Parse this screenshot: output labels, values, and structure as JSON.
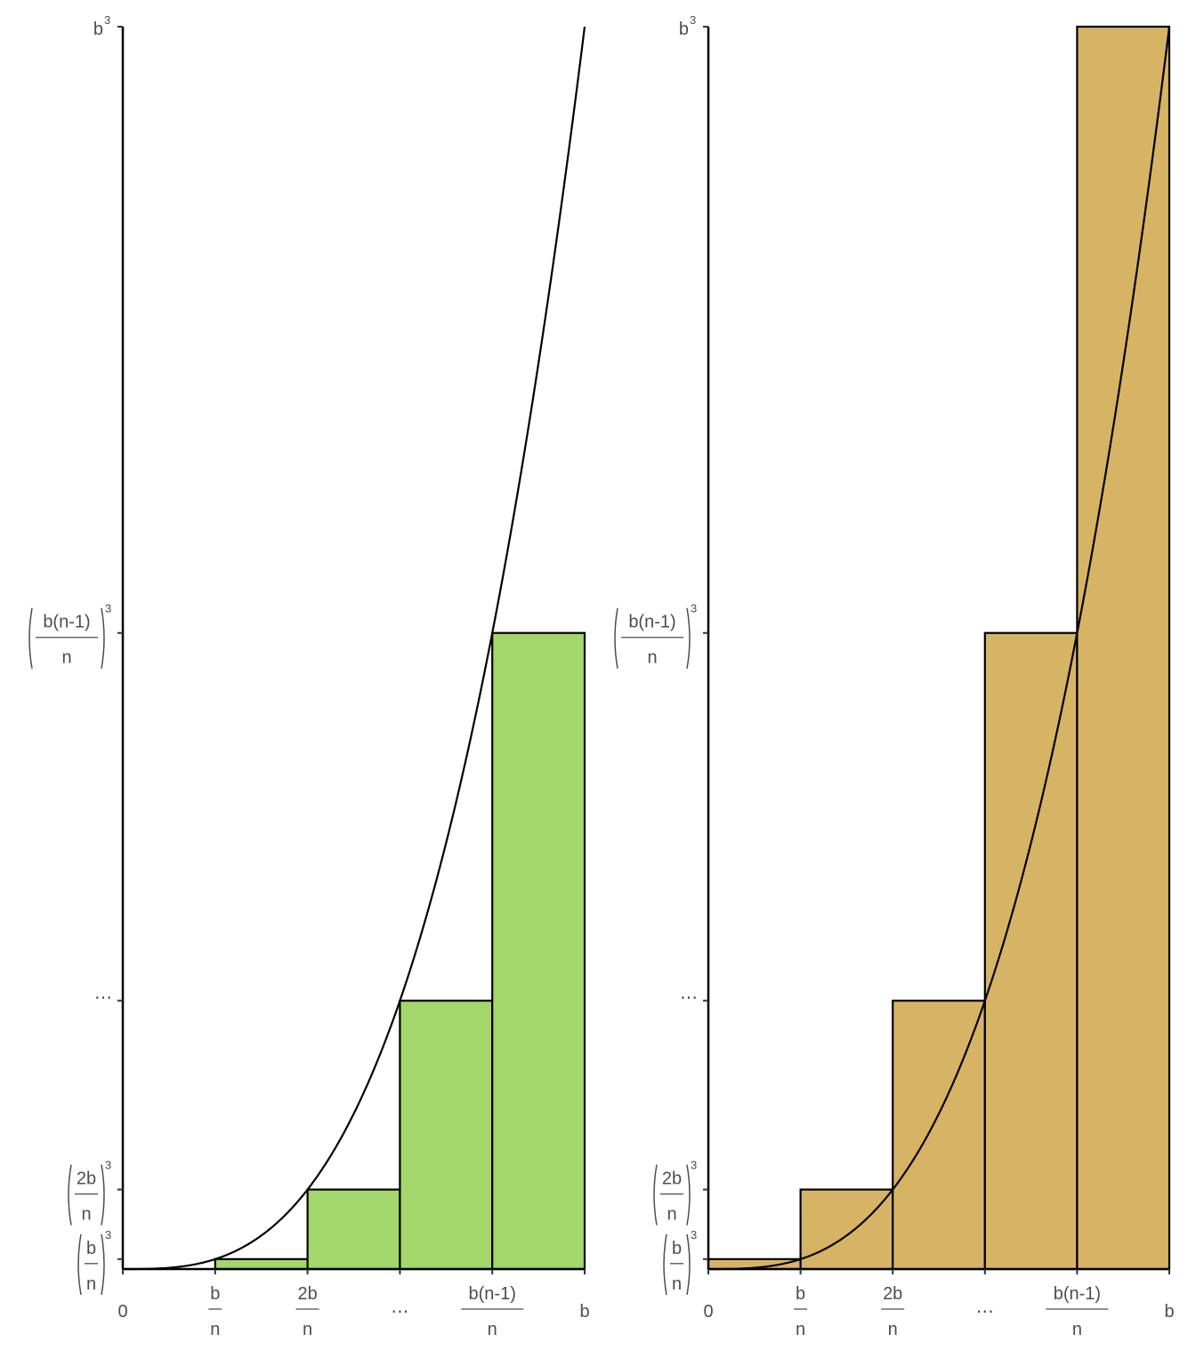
{
  "chart_data": [
    {
      "type": "bar",
      "subtype": "lower-riemann-sum",
      "function": "y = x^3",
      "xlim": [
        0,
        5
      ],
      "ylim": [
        0,
        125
      ],
      "bar_color": "#A3D76B",
      "bars": [
        {
          "x0": 0,
          "x1": 1,
          "y": 0
        },
        {
          "x0": 1,
          "x1": 2,
          "y": 1
        },
        {
          "x0": 2,
          "x1": 3,
          "y": 8
        },
        {
          "x0": 3,
          "x1": 4,
          "y": 27
        },
        {
          "x0": 4,
          "x1": 5,
          "y": 64
        }
      ],
      "x_ticks": [
        {
          "value": 0,
          "text": "0"
        },
        {
          "value": 1,
          "num": "b",
          "den": "n"
        },
        {
          "value": 2,
          "num": "2b",
          "den": "n"
        },
        {
          "value": 3,
          "text": "..."
        },
        {
          "value": 4,
          "num": "b(n-1)",
          "den": "n"
        },
        {
          "value": 5,
          "text": "b"
        }
      ],
      "y_ticks": [
        {
          "value": 1,
          "num": "b",
          "den": "n",
          "power": "3"
        },
        {
          "value": 8,
          "num": "2b",
          "den": "n",
          "power": "3"
        },
        {
          "value": 27,
          "text": "..."
        },
        {
          "value": 64,
          "num": "b(n-1)",
          "den": "n",
          "power": "3"
        },
        {
          "value": 125,
          "text": "b",
          "power": "3"
        }
      ],
      "grid": false
    },
    {
      "type": "bar",
      "subtype": "upper-riemann-sum",
      "function": "y = x^3",
      "xlim": [
        0,
        5
      ],
      "ylim": [
        0,
        125
      ],
      "bar_color": "#D7B365",
      "bars": [
        {
          "x0": 0,
          "x1": 1,
          "y": 1
        },
        {
          "x0": 1,
          "x1": 2,
          "y": 8
        },
        {
          "x0": 2,
          "x1": 3,
          "y": 27
        },
        {
          "x0": 3,
          "x1": 4,
          "y": 64
        },
        {
          "x0": 4,
          "x1": 5,
          "y": 125
        }
      ],
      "x_ticks": [
        {
          "value": 0,
          "text": "0"
        },
        {
          "value": 1,
          "num": "b",
          "den": "n"
        },
        {
          "value": 2,
          "num": "2b",
          "den": "n"
        },
        {
          "value": 3,
          "text": "..."
        },
        {
          "value": 4,
          "num": "b(n-1)",
          "den": "n"
        },
        {
          "value": 5,
          "text": "b"
        }
      ],
      "y_ticks": [
        {
          "value": 1,
          "num": "b",
          "den": "n",
          "power": "3"
        },
        {
          "value": 8,
          "num": "2b",
          "den": "n",
          "power": "3"
        },
        {
          "value": 27,
          "text": "..."
        },
        {
          "value": 64,
          "num": "b(n-1)",
          "den": "n",
          "power": "3"
        },
        {
          "value": 125,
          "text": "b",
          "power": "3"
        }
      ],
      "grid": false
    }
  ]
}
